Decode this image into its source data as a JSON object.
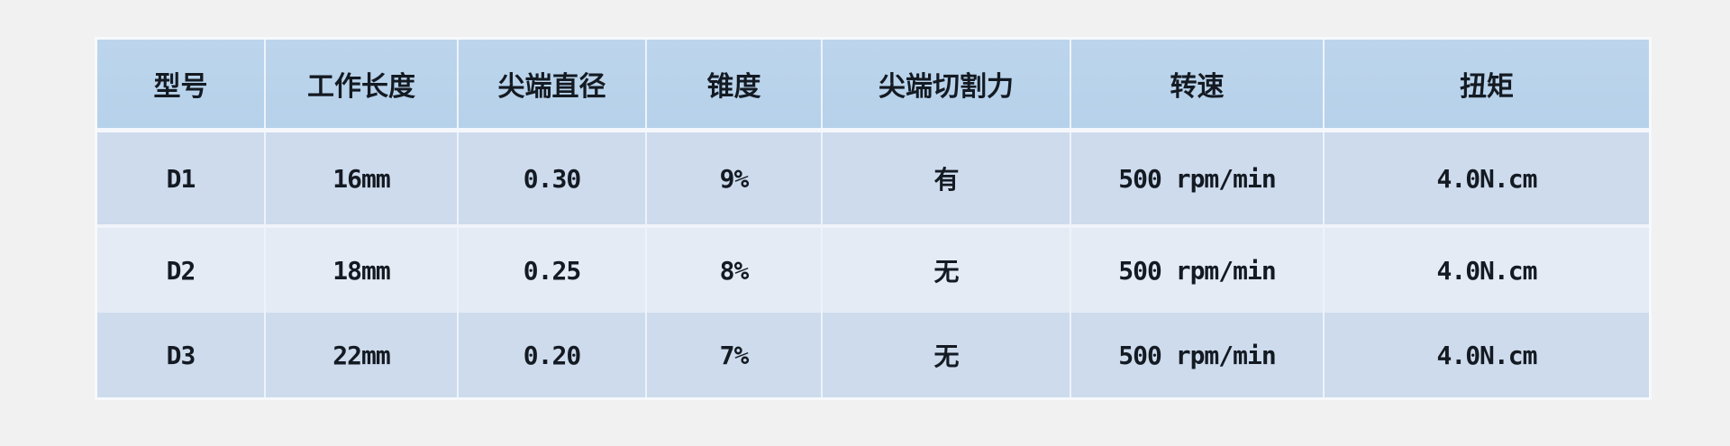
{
  "table": {
    "headers": [
      "型号",
      "工作长度",
      "尖端直径",
      "锥度",
      "尖端切割力",
      "转速",
      "扭矩"
    ],
    "rows": [
      [
        "D1",
        "16mm",
        "0.30",
        "9%",
        "有",
        "500 rpm/min",
        "4.0N.cm"
      ],
      [
        "D2",
        "18mm",
        "0.25",
        "8%",
        "无",
        "500 rpm/min",
        "4.0N.cm"
      ],
      [
        "D3",
        "22mm",
        "0.20",
        "7%",
        "无",
        "500 rpm/min",
        "4.0N.cm"
      ]
    ]
  },
  "colors": {
    "header_bg": "#b9d3eb",
    "row_odd_bg": "#cddbed",
    "row_even_bg": "#e5ebf5",
    "text": "#141a22"
  }
}
